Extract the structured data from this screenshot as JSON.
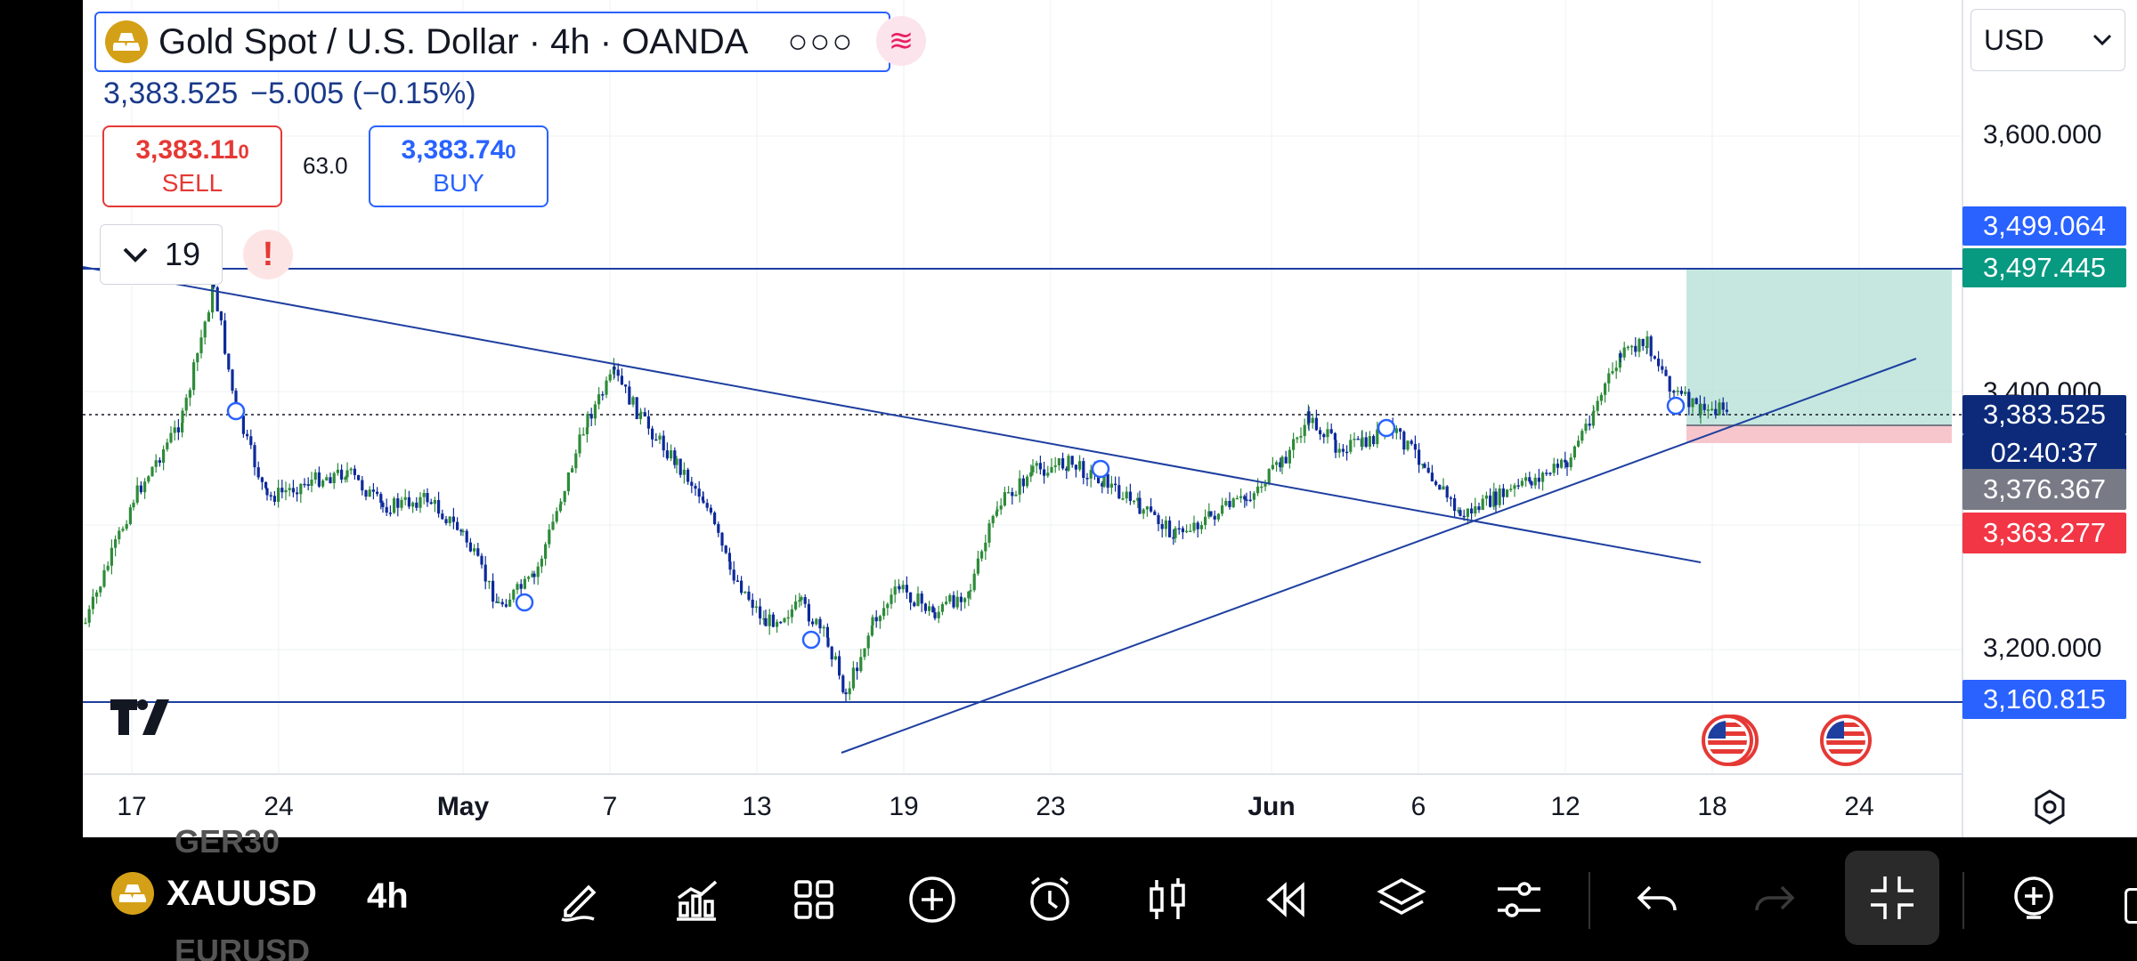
{
  "header": {
    "symbol_title": "Gold Spot / U.S. Dollar · 4h · OANDA",
    "more_icon": "more-dots-icon",
    "indicator_icon": "indicator-wave-icon",
    "last_price": "3,383.525",
    "change": "−5.005 (−0.15%)"
  },
  "trade": {
    "sell_price": "3,383.11",
    "sell_price_small": "0",
    "sell_label": "SELL",
    "spread": "63.0",
    "buy_price": "3,383.74",
    "buy_price_small": "0",
    "buy_label": "BUY"
  },
  "collapse": {
    "count": "19"
  },
  "alert": {
    "symbol": "!"
  },
  "currency": {
    "selected": "USD"
  },
  "price_axis": {
    "ticks": [
      "3,600.000",
      "3,400.000",
      "3,200.000"
    ],
    "tags": [
      {
        "value": "3,499.064",
        "color": "#2962ff"
      },
      {
        "value": "3,497.445",
        "color": "#089981"
      },
      {
        "value": "3,383.525",
        "color": "#0d2a7a"
      },
      {
        "value": "02:40:37",
        "color": "#0d2a7a"
      },
      {
        "value": "3,376.367",
        "color": "#787b86"
      },
      {
        "value": "3,363.277",
        "color": "#f23645"
      },
      {
        "value": "3,160.815",
        "color": "#2962ff"
      }
    ]
  },
  "time_axis": {
    "labels": [
      {
        "text": "17",
        "bold": false
      },
      {
        "text": "24",
        "bold": false
      },
      {
        "text": "May",
        "bold": true
      },
      {
        "text": "7",
        "bold": false
      },
      {
        "text": "13",
        "bold": false
      },
      {
        "text": "19",
        "bold": false
      },
      {
        "text": "23",
        "bold": false
      },
      {
        "text": "Jun",
        "bold": true
      },
      {
        "text": "6",
        "bold": false
      },
      {
        "text": "12",
        "bold": false
      },
      {
        "text": "18",
        "bold": false
      },
      {
        "text": "24",
        "bold": false
      }
    ]
  },
  "toolbar": {
    "ticker": "XAUUSD",
    "interval": "4h",
    "ghost_above": "GER30",
    "ghost_below": "EURUSD",
    "icons": [
      "pencil-icon",
      "indicators-icon",
      "grid-layout-icon",
      "add-icon",
      "alarm-icon",
      "candles-icon",
      "replay-icon",
      "layers-icon",
      "settings-sliders-icon",
      "undo-icon",
      "redo-icon",
      "exit-fullscreen-icon",
      "add-chart-icon"
    ]
  },
  "colors": {
    "up": "#2e8b3a",
    "down": "#0d2a9a",
    "trendline": "#1e3fa0",
    "target_zone": "#b2dfd6",
    "stop_zone": "#f7c6cc"
  }
}
